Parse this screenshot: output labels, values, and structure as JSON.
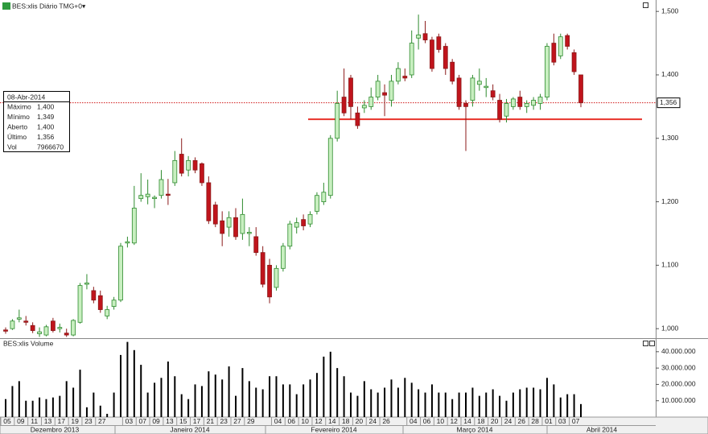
{
  "chart_data": {
    "type": "candlestick",
    "title": "BES:xlis Diário TMG+0▾",
    "volume_title": "BES:xlis Volume",
    "categories": [
      "05",
      null,
      "09",
      null,
      "11",
      null,
      "13",
      null,
      "17",
      null,
      "19",
      null,
      "23",
      null,
      "27",
      null,
      null,
      null,
      "03",
      null,
      "07",
      null,
      "09",
      null,
      "13",
      null,
      "15",
      null,
      "17",
      null,
      "21",
      null,
      "23",
      null,
      "27",
      null,
      "29",
      null,
      null,
      null,
      "04",
      null,
      "06",
      null,
      "10",
      null,
      "12",
      null,
      "14",
      null,
      "18",
      null,
      "20",
      null,
      "24",
      null,
      "26",
      null,
      null,
      null,
      "04",
      null,
      "06",
      null,
      "10",
      null,
      "12",
      null,
      "14",
      null,
      "18",
      null,
      "20",
      null,
      "24",
      null,
      "26",
      null,
      "28",
      null,
      "01",
      null,
      "03",
      null,
      "07",
      null
    ],
    "months": [
      "Dezembro 2013",
      "Janeiro 2014",
      "Fevereiro 2014",
      "Março 2014",
      "Abril 2014"
    ],
    "open": [
      0.998,
      1.0,
      1.015,
      1.012,
      1.005,
      0.992,
      0.99,
      1.012,
      1.0,
      0.993,
      0.99,
      1.01,
      1.07,
      1.06,
      1.052,
      1.02,
      1.035,
      1.045,
      1.135,
      1.135,
      1.205,
      1.208,
      1.205,
      1.21,
      1.212,
      1.23,
      1.275,
      1.25,
      1.265,
      1.26,
      1.23,
      1.195,
      1.17,
      1.16,
      1.175,
      1.15,
      1.15,
      1.145,
      1.12,
      1.1,
      1.065,
      1.095,
      1.13,
      1.16,
      1.172,
      1.165,
      1.185,
      1.2,
      1.21,
      1.3,
      1.365,
      1.395,
      1.34,
      1.348,
      1.35,
      1.365,
      1.372,
      1.36,
      1.39,
      1.398,
      1.4,
      1.458,
      1.465,
      1.455,
      1.46,
      1.445,
      1.42,
      1.395,
      1.355,
      1.36,
      1.385,
      1.38,
      1.375,
      1.36,
      1.335,
      1.35,
      1.365,
      1.35,
      1.352,
      1.355,
      1.365,
      1.45,
      1.43,
      1.462,
      1.435,
      1.4
    ],
    "high": [
      1.002,
      1.015,
      1.03,
      1.02,
      1.01,
      1.002,
      1.006,
      1.017,
      1.008,
      1.0,
      1.015,
      1.072,
      1.086,
      1.066,
      1.06,
      1.036,
      1.05,
      1.135,
      1.145,
      1.225,
      1.245,
      1.235,
      1.21,
      1.25,
      1.236,
      1.28,
      1.3,
      1.272,
      1.27,
      1.262,
      1.24,
      1.2,
      1.185,
      1.185,
      1.19,
      1.205,
      1.16,
      1.16,
      1.13,
      1.11,
      1.1,
      1.135,
      1.17,
      1.175,
      1.18,
      1.185,
      1.215,
      1.23,
      1.305,
      1.375,
      1.41,
      1.4,
      1.35,
      1.36,
      1.38,
      1.4,
      1.385,
      1.4,
      1.42,
      1.41,
      1.47,
      1.495,
      1.485,
      1.46,
      1.465,
      1.45,
      1.425,
      1.4,
      1.36,
      1.4,
      1.41,
      1.395,
      1.385,
      1.37,
      1.362,
      1.365,
      1.375,
      1.36,
      1.365,
      1.37,
      1.45,
      1.465,
      1.465,
      1.465,
      1.44,
      1.4
    ],
    "low": [
      0.992,
      0.998,
      1.01,
      1.005,
      0.993,
      0.987,
      0.988,
      0.994,
      0.994,
      0.987,
      0.988,
      1.008,
      1.062,
      1.04,
      1.025,
      1.015,
      1.03,
      1.042,
      1.128,
      1.132,
      1.2,
      1.196,
      1.19,
      1.205,
      1.195,
      1.225,
      1.24,
      1.24,
      1.245,
      1.225,
      1.165,
      1.16,
      1.13,
      1.145,
      1.14,
      1.14,
      1.13,
      1.115,
      1.065,
      1.04,
      1.06,
      1.09,
      1.125,
      1.15,
      1.155,
      1.16,
      1.18,
      1.195,
      1.205,
      1.295,
      1.335,
      1.33,
      1.315,
      1.34,
      1.345,
      1.36,
      1.335,
      1.35,
      1.385,
      1.39,
      1.395,
      1.44,
      1.45,
      1.405,
      1.435,
      1.4,
      1.385,
      1.345,
      1.28,
      1.35,
      1.375,
      1.365,
      1.36,
      1.325,
      1.325,
      1.345,
      1.345,
      1.34,
      1.345,
      1.345,
      1.36,
      1.415,
      1.425,
      1.44,
      1.4,
      1.349
    ],
    "close": [
      0.996,
      1.012,
      1.017,
      1.01,
      0.997,
      0.995,
      1.003,
      0.997,
      1.002,
      0.99,
      1.013,
      1.068,
      1.072,
      1.045,
      1.03,
      1.03,
      1.045,
      1.13,
      1.137,
      1.19,
      1.21,
      1.212,
      1.207,
      1.235,
      1.21,
      1.265,
      1.245,
      1.265,
      1.25,
      1.23,
      1.17,
      1.165,
      1.15,
      1.175,
      1.145,
      1.18,
      1.152,
      1.12,
      1.07,
      1.05,
      1.095,
      1.13,
      1.165,
      1.167,
      1.162,
      1.18,
      1.21,
      1.215,
      1.3,
      1.355,
      1.34,
      1.35,
      1.32,
      1.352,
      1.365,
      1.39,
      1.368,
      1.39,
      1.41,
      1.395,
      1.45,
      1.463,
      1.455,
      1.41,
      1.44,
      1.41,
      1.39,
      1.35,
      1.35,
      1.395,
      1.39,
      1.382,
      1.365,
      1.33,
      1.355,
      1.362,
      1.35,
      1.355,
      1.36,
      1.365,
      1.445,
      1.42,
      1.46,
      1.445,
      1.405,
      1.356
    ],
    "volume": [
      11000000,
      19000000,
      22000000,
      10000000,
      10000000,
      12000000,
      11000000,
      12000000,
      13000000,
      22000000,
      18000000,
      29000000,
      6000000,
      15000000,
      7000000,
      2000000,
      15000000,
      38000000,
      46000000,
      41000000,
      32000000,
      15000000,
      21000000,
      24000000,
      34000000,
      25000000,
      14000000,
      11000000,
      20000000,
      19000000,
      28000000,
      26000000,
      23000000,
      31000000,
      13000000,
      30000000,
      22000000,
      18000000,
      17000000,
      25000000,
      25000000,
      20000000,
      20000000,
      14000000,
      20000000,
      23000000,
      27000000,
      37000000,
      40000000,
      30000000,
      25000000,
      15000000,
      13000000,
      22000000,
      17000000,
      15000000,
      18000000,
      23000000,
      18000000,
      24000000,
      21000000,
      17000000,
      15000000,
      20000000,
      15000000,
      15000000,
      11000000,
      15000000,
      15000000,
      18000000,
      13000000,
      15000000,
      17000000,
      13000000,
      10000000,
      15000000,
      17000000,
      18000000,
      18000000,
      17000000,
      24000000,
      20000000,
      12000000,
      14000000,
      14000000,
      7966670
    ],
    "up_color": "#2e8b2e",
    "up_fill": "#c8efc0",
    "down_color": "#8b1a1a",
    "down_fill": "#c0141c",
    "volume_color": "#000000",
    "ylim": [
      0.985,
      1.518
    ],
    "yticks": [
      {
        "value": 1.0,
        "label": "1,000"
      },
      {
        "value": 1.1,
        "label": "1,100"
      },
      {
        "value": 1.2,
        "label": "1,200"
      },
      {
        "value": 1.3,
        "label": "1,300"
      },
      {
        "value": 1.4,
        "label": "1,400"
      },
      {
        "value": 1.5,
        "label": "1,500"
      }
    ],
    "vlim": [
      0,
      47300000
    ],
    "vticks": [
      {
        "value": 10000000,
        "label": "10.000.000"
      },
      {
        "value": 20000000,
        "label": "20.000.000"
      },
      {
        "value": 30000000,
        "label": "30.000.000"
      },
      {
        "value": 40000000,
        "label": "40.000.000"
      }
    ],
    "last_price": {
      "value": 1.356,
      "label": "1,356"
    },
    "support_line": 1.33,
    "info_box": {
      "date": "08-Abr-2014",
      "rows": [
        [
          "Máximo",
          "1,400"
        ],
        [
          "Mínimo",
          "1,349"
        ],
        [
          "Aberto",
          "1,400"
        ],
        [
          "Último",
          "1,356"
        ],
        [
          "Vol",
          "7966670"
        ]
      ]
    }
  }
}
